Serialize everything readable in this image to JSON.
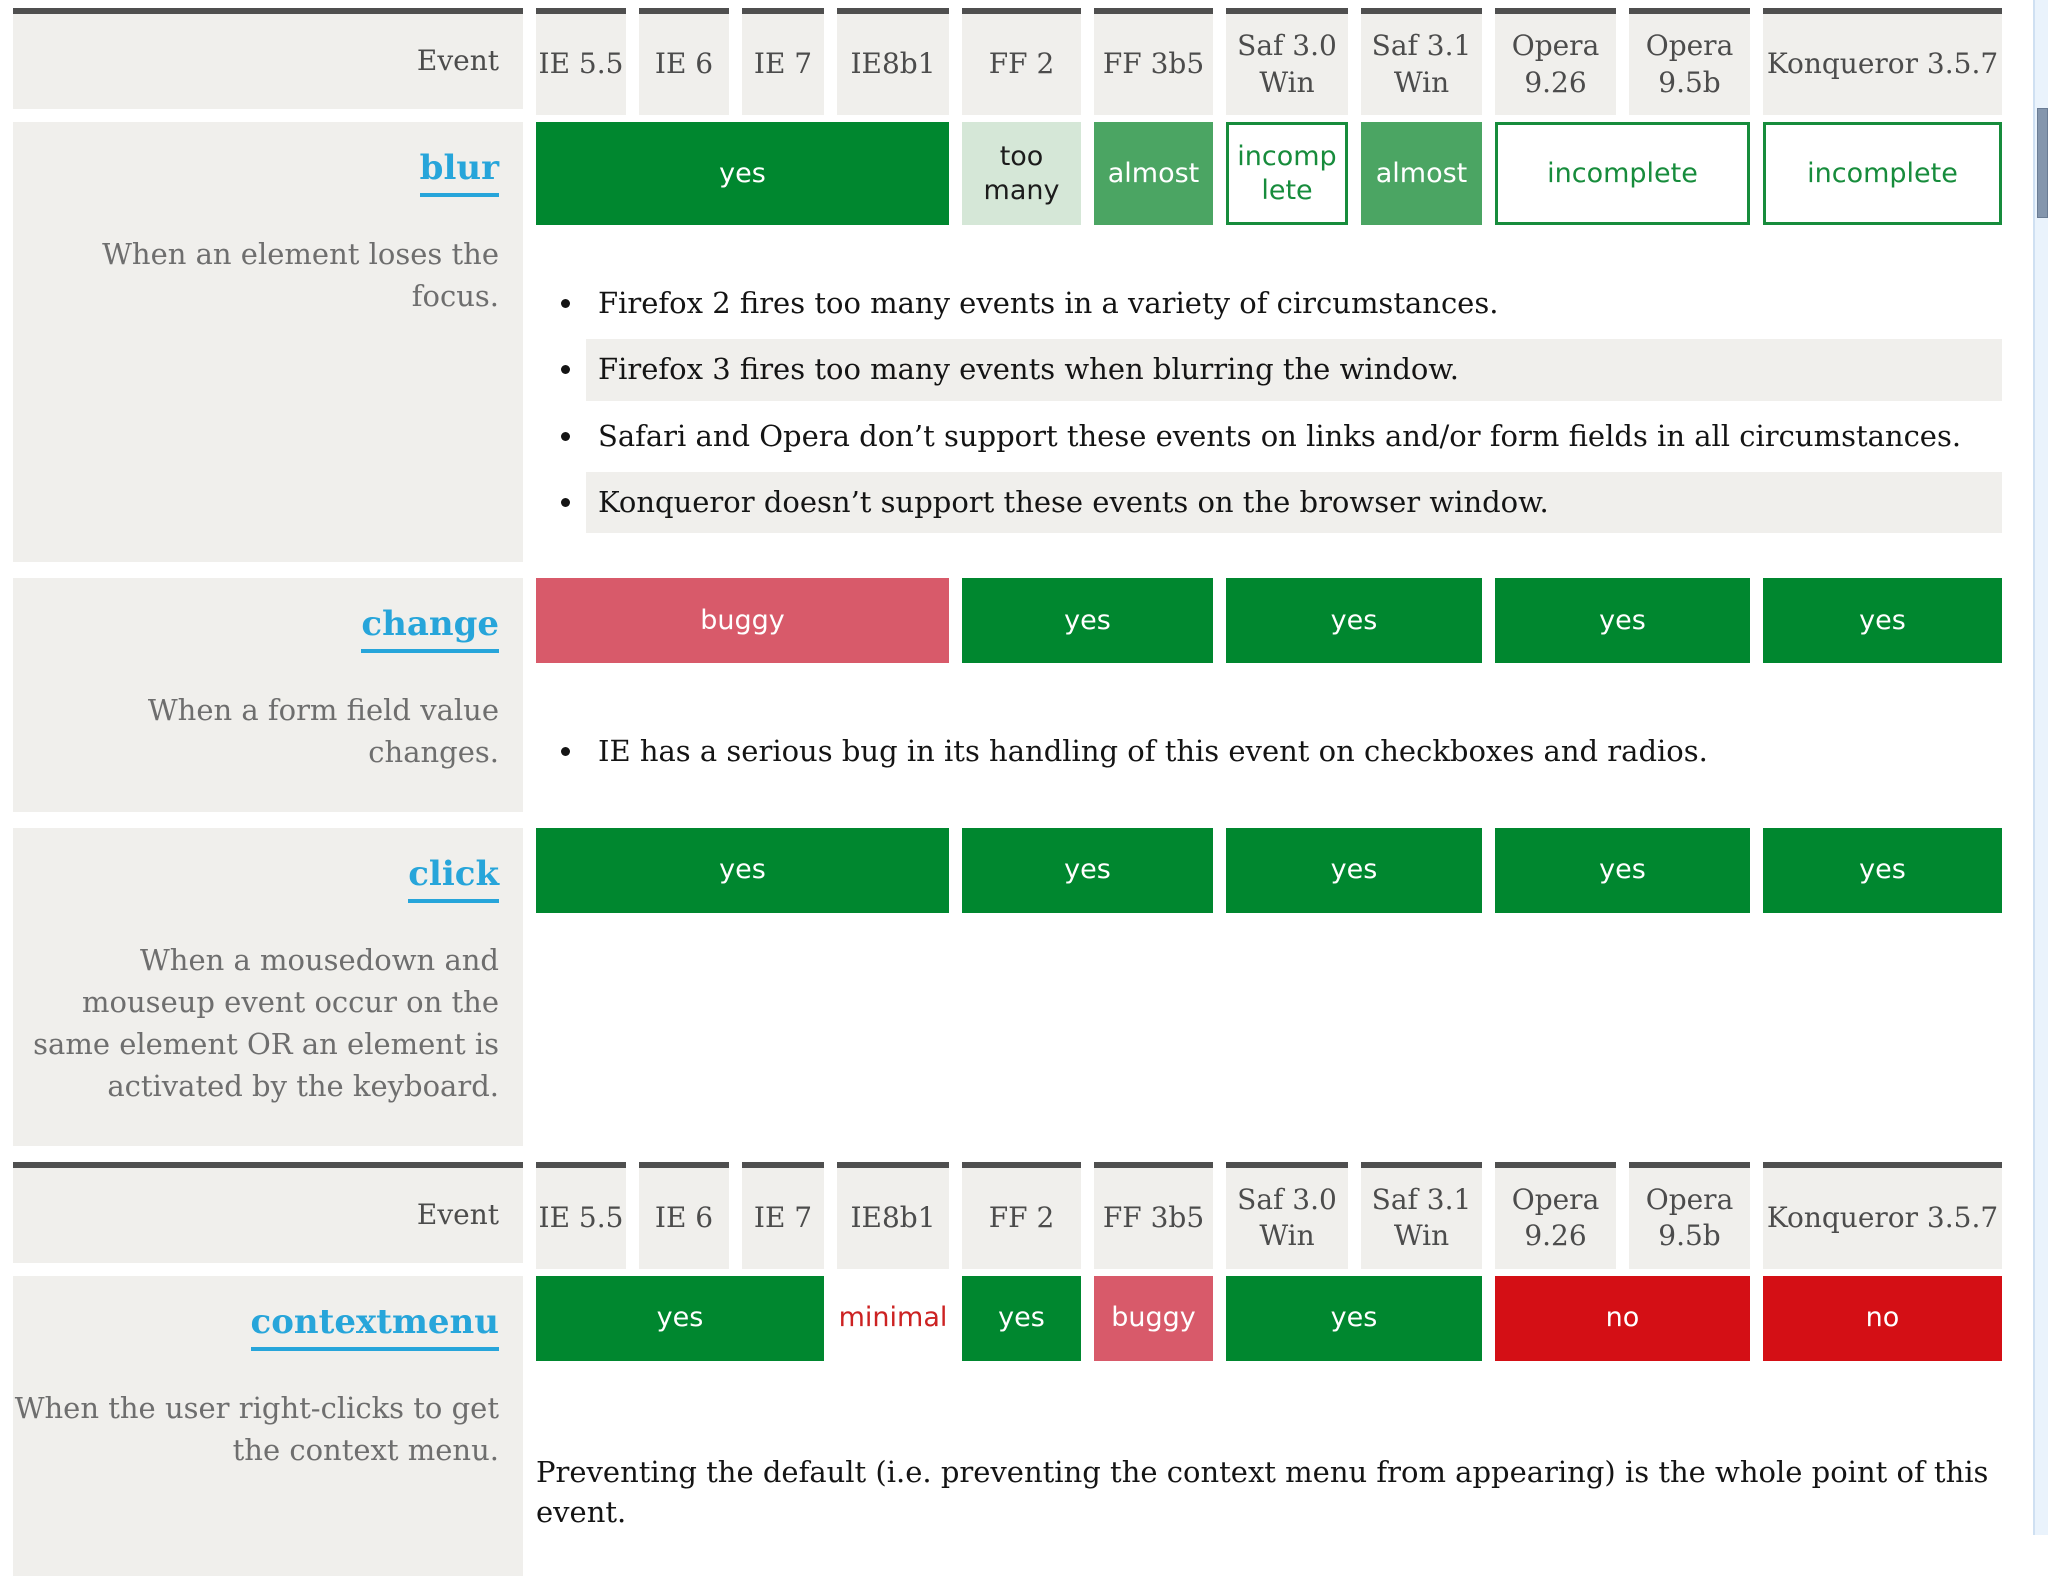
{
  "colors": {
    "yes_green": "#00872f",
    "almost_green": "#4ba563",
    "too_many_bg": "#d5e7d7",
    "incomplete_green": "#178c3c",
    "buggy_red": "#d85a6a",
    "no_red": "#d40f15",
    "minimal_red": "#cc2222",
    "link_blue": "#27a5da",
    "cell_gray": "#f0efec",
    "header_border": "#4f4f4f",
    "header_text": "#4c4c4c",
    "desc_text": "#6e6e6e",
    "note_text": "#141414",
    "scroll_track": "#eaf3fc",
    "scroll_thumb": "#8496ad"
  },
  "header": {
    "event_label": "Event",
    "browsers": [
      "IE 5.5",
      "IE 6",
      "IE 7",
      "IE8b1",
      "FF 2",
      "FF 3b5",
      "Saf 3.0 Win",
      "Saf 3.1 Win",
      "Opera 9.26",
      "Opera 9.5b",
      "Konqueror 3.5.7"
    ]
  },
  "layout": [
    "header",
    "blur",
    "change",
    "click",
    "header",
    "contextmenu"
  ],
  "sections": {
    "blur": {
      "event": "blur",
      "description": "When an element loses the focus.",
      "cells": [
        {
          "label": "yes",
          "status": "yes",
          "col": 1,
          "span": 4
        },
        {
          "label": "too many",
          "status": "toomany",
          "col": 5,
          "span": 1
        },
        {
          "label": "almost",
          "status": "almost",
          "col": 6,
          "span": 1
        },
        {
          "label": "incomplete",
          "status": "incomplete",
          "col": 7,
          "span": 1
        },
        {
          "label": "almost",
          "status": "almost",
          "col": 8,
          "span": 1
        },
        {
          "label": "incomplete",
          "status": "incomplete",
          "col": 9,
          "span": 2
        },
        {
          "label": "incomplete",
          "status": "incomplete",
          "col": 11,
          "span": 1
        }
      ],
      "notes": [
        "Firefox 2 fires too many events in a variety of circumstances.",
        "Firefox 3 fires too many events when blurring the window.",
        "Safari and Opera don’t support these events on links and/or form fields in all circumstances.",
        "Konqueror doesn’t support these events on the browser window."
      ]
    },
    "change": {
      "event": "change",
      "description": "When a form field value changes.",
      "cells": [
        {
          "label": "buggy",
          "status": "buggy",
          "col": 1,
          "span": 4
        },
        {
          "label": "yes",
          "status": "yes",
          "col": 5,
          "span": 2
        },
        {
          "label": "yes",
          "status": "yes",
          "col": 7,
          "span": 2
        },
        {
          "label": "yes",
          "status": "yes",
          "col": 9,
          "span": 2
        },
        {
          "label": "yes",
          "status": "yes",
          "col": 11,
          "span": 1
        }
      ],
      "notes": [
        "IE has a serious bug in its handling of this event on checkboxes and radios."
      ]
    },
    "click": {
      "event": "click",
      "description": "When a mousedown and mouseup event occur on the same element OR an element is activated by the keyboard.",
      "cells": [
        {
          "label": "yes",
          "status": "yes",
          "col": 1,
          "span": 4
        },
        {
          "label": "yes",
          "status": "yes",
          "col": 5,
          "span": 2
        },
        {
          "label": "yes",
          "status": "yes",
          "col": 7,
          "span": 2
        },
        {
          "label": "yes",
          "status": "yes",
          "col": 9,
          "span": 2
        },
        {
          "label": "yes",
          "status": "yes",
          "col": 11,
          "span": 1
        }
      ],
      "notes": []
    },
    "contextmenu": {
      "event": "contextmenu",
      "description": "When the user right-clicks to get the context menu.",
      "cells": [
        {
          "label": "yes",
          "status": "yes",
          "col": 1,
          "span": 3
        },
        {
          "label": "minimal",
          "status": "minimal",
          "col": 4,
          "span": 1
        },
        {
          "label": "yes",
          "status": "yes",
          "col": 5,
          "span": 1
        },
        {
          "label": "buggy",
          "status": "buggy",
          "col": 6,
          "span": 1
        },
        {
          "label": "yes",
          "status": "yes",
          "col": 7,
          "span": 2
        },
        {
          "label": "no",
          "status": "no",
          "col": 9,
          "span": 2
        },
        {
          "label": "no",
          "status": "no",
          "col": 11,
          "span": 1
        }
      ],
      "notes": [],
      "paragraph": "Preventing the default (i.e. preventing the context menu from appearing) is the whole point of this event."
    }
  }
}
